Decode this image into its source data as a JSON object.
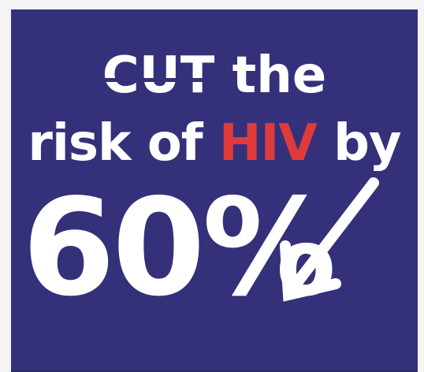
{
  "poster": {
    "line1": {
      "cut": "CUT",
      "the": "the"
    },
    "line2": {
      "risk_of": "risk of",
      "hiv": "HIV",
      "by": "by"
    },
    "percent": "60%",
    "arrow_icon": "arrow-down-left-icon",
    "colors": {
      "background": "#34317a",
      "text": "#ffffff",
      "accent": "#e03b3b"
    }
  }
}
